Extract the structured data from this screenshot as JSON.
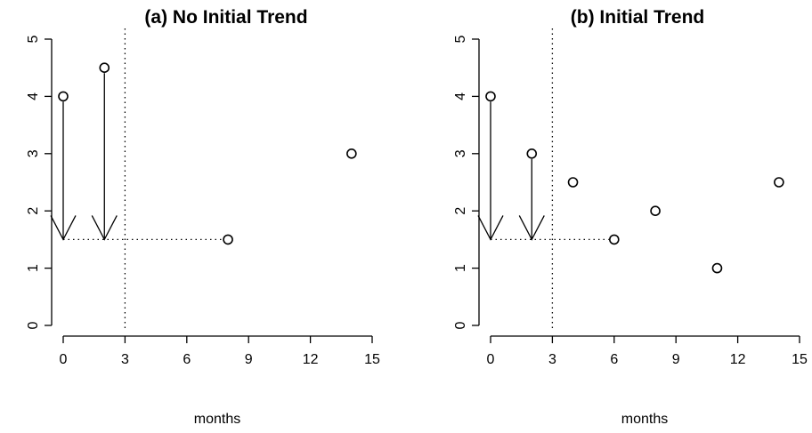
{
  "chart_data": [
    {
      "type": "scatter",
      "title": "(a) No Initial Trend",
      "xlabel": "months",
      "ylabel": "",
      "xlim": [
        0,
        15
      ],
      "ylim": [
        0,
        5
      ],
      "xticks": [
        "0",
        "3",
        "6",
        "9",
        "12",
        "15"
      ],
      "yticks": [
        "0",
        "1",
        "2",
        "3",
        "4",
        "5"
      ],
      "grid": false,
      "points": [
        {
          "x": 0,
          "y": 4
        },
        {
          "x": 2,
          "y": 4.5
        },
        {
          "x": 8,
          "y": 1.5
        },
        {
          "x": 14,
          "y": 3
        }
      ],
      "arrows": [
        {
          "x": 0,
          "from": 4,
          "to": 1.5
        },
        {
          "x": 2,
          "from": 4.5,
          "to": 1.5
        }
      ],
      "reference_line_x": 3,
      "reference_line_y": {
        "y": 1.5,
        "from_x": 0,
        "to_x": 8
      }
    },
    {
      "type": "scatter",
      "title": "(b) Initial Trend",
      "xlabel": "months",
      "ylabel": "",
      "xlim": [
        0,
        15
      ],
      "ylim": [
        0,
        5
      ],
      "xticks": [
        "0",
        "3",
        "6",
        "9",
        "12",
        "15"
      ],
      "yticks": [
        "0",
        "1",
        "2",
        "3",
        "4",
        "5"
      ],
      "grid": false,
      "points": [
        {
          "x": 0,
          "y": 4
        },
        {
          "x": 2,
          "y": 3
        },
        {
          "x": 4,
          "y": 2.5
        },
        {
          "x": 6,
          "y": 1.5
        },
        {
          "x": 8,
          "y": 2
        },
        {
          "x": 11,
          "y": 1
        },
        {
          "x": 14,
          "y": 2.5
        }
      ],
      "arrows": [
        {
          "x": 0,
          "from": 4,
          "to": 1.5
        },
        {
          "x": 2,
          "from": 3,
          "to": 1.5
        }
      ],
      "reference_line_x": 3,
      "reference_line_y": {
        "y": 1.5,
        "from_x": 0,
        "to_x": 6
      }
    }
  ]
}
